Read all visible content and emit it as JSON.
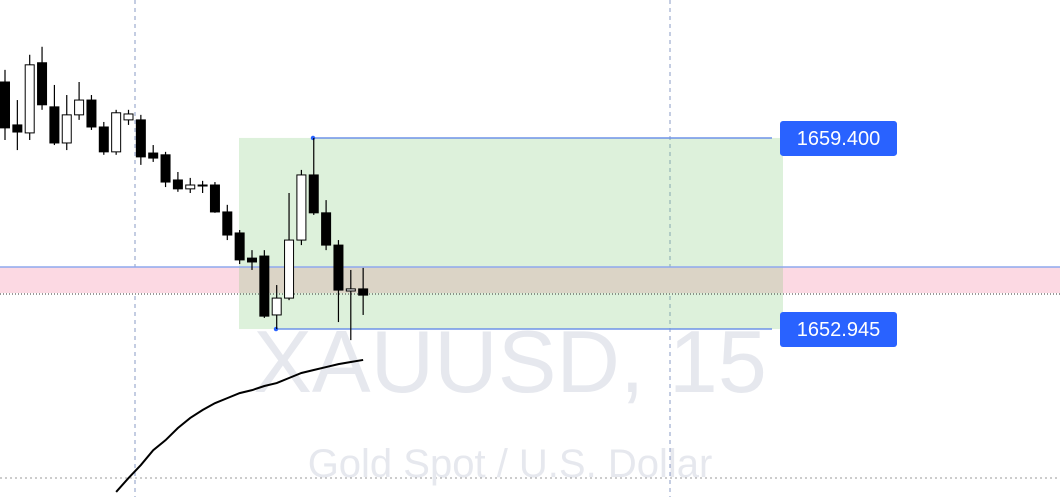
{
  "chart_data": {
    "type": "candlestick",
    "categories": [
      null,
      null,
      null,
      null,
      null,
      null,
      null,
      null,
      null,
      null,
      null,
      null,
      null,
      null,
      null,
      null,
      null,
      null,
      null,
      null,
      null,
      null,
      null,
      null,
      null,
      null,
      null,
      null,
      null,
      null
    ],
    "open": [
      1661.29,
      1659.84,
      1659.57,
      1661.94,
      1660.45,
      1659.23,
      1660.18,
      1660.68,
      1659.77,
      1658.93,
      1660.01,
      1660.01,
      1658.89,
      1658.83,
      1657.98,
      1657.68,
      1657.81,
      1657.81,
      1656.9,
      1656.19,
      1655.34,
      1655.41,
      1653.42,
      1653.99,
      1655.95,
      1658.15,
      1656.87,
      1655.78,
      1654.23,
      1654.3
    ],
    "high": [
      1661.7,
      1660.68,
      1662.21,
      1662.48,
      1661.19,
      1660.85,
      1661.29,
      1660.85,
      1659.94,
      1660.35,
      1660.35,
      1660.18,
      1659.16,
      1658.93,
      1658.25,
      1658.05,
      1657.95,
      1657.91,
      1657.14,
      1656.29,
      1655.61,
      1655.61,
      1654.43,
      1657.54,
      1658.32,
      1659.4,
      1657.3,
      1655.95,
      1654.94,
      1655.01
    ],
    "low": [
      1659.33,
      1658.99,
      1659.33,
      1660.35,
      1659.16,
      1658.99,
      1660.01,
      1659.67,
      1658.83,
      1658.83,
      1659.84,
      1658.49,
      1658.59,
      1657.74,
      1657.58,
      1657.54,
      1657.54,
      1656.87,
      1655.95,
      1655.14,
      1654.94,
      1653.32,
      1652.945,
      1653.92,
      1655.78,
      1656.8,
      1655.61,
      1653.18,
      1652.57,
      1653.42
    ],
    "close": [
      1659.74,
      1659.6,
      1661.87,
      1660.52,
      1659.23,
      1660.18,
      1660.68,
      1659.77,
      1658.93,
      1660.25,
      1660.21,
      1658.76,
      1658.72,
      1657.91,
      1657.68,
      1657.81,
      1657.78,
      1656.9,
      1656.12,
      1655.28,
      1655.21,
      1653.38,
      1653.99,
      1655.95,
      1658.15,
      1656.87,
      1655.78,
      1654.26,
      1654.3,
      1654.09
    ],
    "line_values": [
      null,
      null,
      null,
      null,
      null,
      null,
      null,
      null,
      null,
      1647.44,
      1647.91,
      1648.35,
      1648.85,
      1649.19,
      1649.6,
      1649.94,
      1650.21,
      1650.44,
      1650.61,
      1650.78,
      1650.88,
      1651.02,
      1651.12,
      1651.29,
      1651.46,
      1651.56,
      1651.66,
      1651.76,
      1651.83,
      1651.9
    ],
    "up_color": "#ffffff",
    "down_color": "#000000",
    "line_color": "#000000",
    "ylim": [
      1647.27,
      1664.06
    ],
    "price_labels": [
      {
        "value": 1659.4,
        "label": "1659.400"
      },
      {
        "value": 1652.945,
        "label": "1652.945"
      }
    ],
    "watermark": "XAUUSD, 15",
    "watermark_subtitle": "Gold Spot / U.S. Dollar"
  }
}
